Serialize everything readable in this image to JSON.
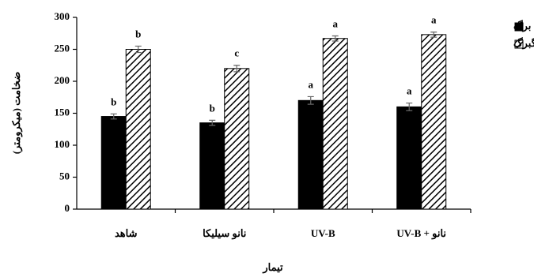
{
  "chart_data": {
    "type": "bar",
    "y_label": "ضخامت (میکرومتر)",
    "x_label": "تیمار",
    "categories": [
      "شاهد",
      "نانو سیلیکا",
      "UV-B",
      "نانو + UV-B"
    ],
    "series": [
      {
        "name": "برگ",
        "color": "#000000",
        "pattern": "solid",
        "values": [
          145,
          135,
          170,
          160
        ],
        "errors": [
          4,
          4,
          6,
          6
        ],
        "letters": [
          "b",
          "b",
          "a",
          "a"
        ]
      },
      {
        "name": "رگبرگ",
        "color": "#000000",
        "pattern": "hatch",
        "values": [
          250,
          220,
          267,
          273
        ],
        "errors": [
          5,
          5,
          4,
          4
        ],
        "letters": [
          "b",
          "c",
          "a",
          "a"
        ]
      }
    ],
    "ylim": [
      0,
      300
    ],
    "yticks": [
      0,
      50,
      100,
      150,
      200,
      250,
      300
    ],
    "grid": false,
    "legend": "top-right"
  }
}
